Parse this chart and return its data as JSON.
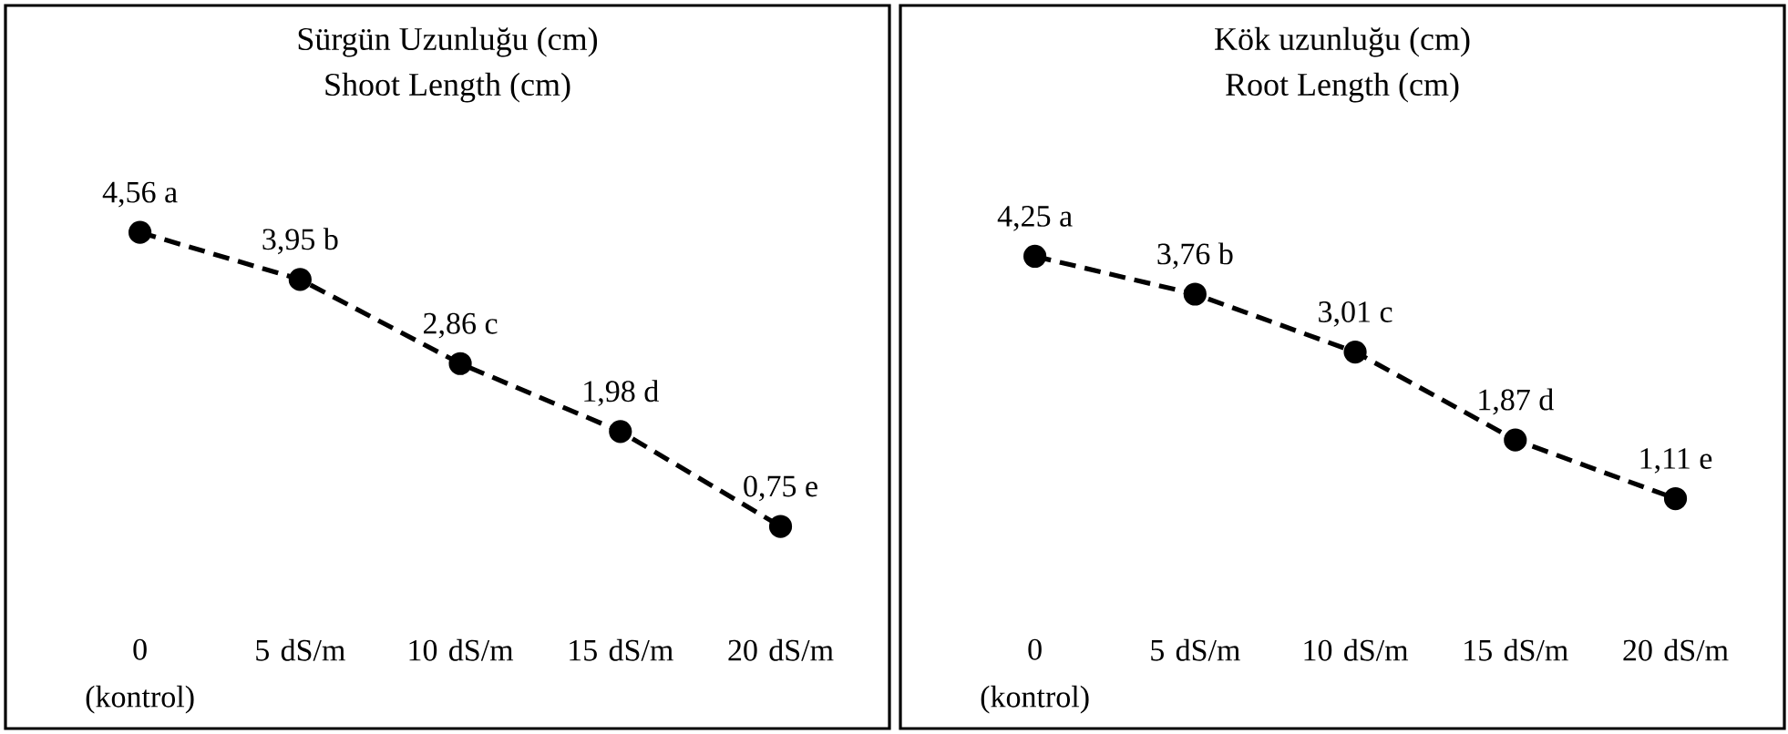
{
  "chart_data": [
    {
      "type": "line",
      "title": "Sürgün Uzunluğu (cm)",
      "subtitle": "Shoot Length (cm)",
      "categories": [
        "0 (kontrol)",
        "5 dS/m",
        "10 dS/m",
        "15 dS/m",
        "20 dS/m"
      ],
      "values": [
        4.56,
        3.95,
        2.86,
        1.98,
        0.75
      ],
      "value_labels": [
        "4,56 a",
        "3,95 b",
        "2,86 c",
        "1,98 d",
        "0,75 e"
      ],
      "color": "#000000",
      "marker": "circle",
      "line_style": "dashed"
    },
    {
      "type": "line",
      "title": "Kök uzunluğu (cm)",
      "subtitle": "Root Length (cm)",
      "categories": [
        "0 (kontrol)",
        "5 dS/m",
        "10 dS/m",
        "15 dS/m",
        "20 dS/m"
      ],
      "values": [
        4.25,
        3.76,
        3.01,
        1.87,
        1.11
      ],
      "value_labels": [
        "4,25 a",
        "3,76 b",
        "3,01 c",
        "1,87 d",
        "1,11 e"
      ],
      "color": "#000000",
      "marker": "circle",
      "line_style": "dashed"
    }
  ]
}
